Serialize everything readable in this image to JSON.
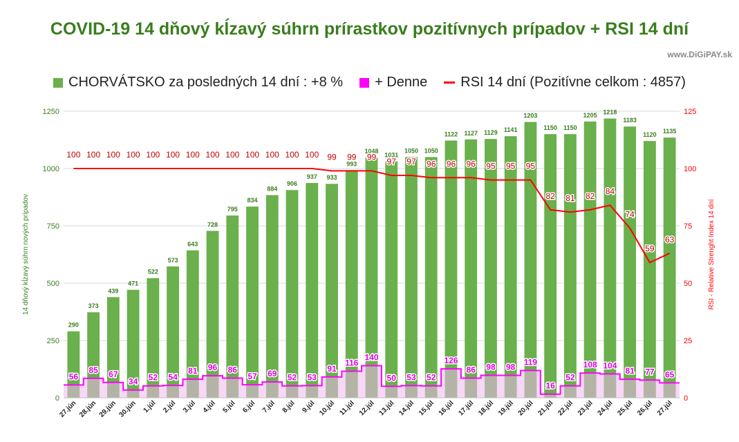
{
  "title": "COVID-19 14 dňový kĺzavý súhrn prírastkov pozitívnych prípadov + RSI 14 dní",
  "source": "www.DiGiPAY.sk",
  "colors": {
    "bar": "#6ab04c",
    "daily": "#ff00ff",
    "dailyFill": "#f0b8f0",
    "rsi": "#ff0000",
    "title": "#3a7d1e"
  },
  "chart_data": {
    "type": "bar",
    "categories": [
      "27.jún",
      "28.jún",
      "29.jún",
      "30.jún",
      "1.júl",
      "2.júl",
      "3.júl",
      "4.júl",
      "5.júl",
      "6.júl",
      "7.júl",
      "8.júl",
      "9.júl",
      "10.júl",
      "11.júl",
      "12.júl",
      "13.júl",
      "14.júl",
      "15.júl",
      "16.júl",
      "17.júl",
      "18.júl",
      "19.júl",
      "20.júl",
      "21.júl",
      "22.júl",
      "23.júl",
      "24.júl",
      "25.júl",
      "26.júl",
      "27.júl"
    ],
    "series": [
      {
        "name": "CHORVÁTSKO za posledných 14 dní : +8 %",
        "type": "bar",
        "axis": "left",
        "values": [
          290,
          373,
          439,
          471,
          522,
          573,
          643,
          728,
          795,
          834,
          884,
          906,
          937,
          933,
          993,
          1048,
          1031,
          1050,
          1050,
          1122,
          1127,
          1129,
          1141,
          1203,
          1150,
          1150,
          1205,
          1218,
          1183,
          1120,
          1135
        ]
      },
      {
        "name": "+ Denne",
        "type": "step-area",
        "axis": "left",
        "values": [
          56,
          85,
          67,
          34,
          52,
          54,
          81,
          96,
          86,
          57,
          69,
          52,
          53,
          91,
          116,
          140,
          50,
          53,
          52,
          126,
          86,
          98,
          98,
          119,
          16,
          52,
          108,
          104,
          81,
          77,
          65
        ]
      },
      {
        "name": "RSI 14 dní (Pozitívne celkom : 4857)",
        "type": "line",
        "axis": "right",
        "values": [
          100,
          100,
          100,
          100,
          100,
          100,
          100,
          100,
          100,
          100,
          100,
          100,
          100,
          99,
          99,
          99,
          97,
          97,
          96,
          96,
          96,
          95,
          95,
          95,
          82,
          81,
          82,
          84,
          74,
          59,
          63
        ]
      }
    ],
    "ylabel": "14 dňový kĺzavý súhrn nových prípadov",
    "ylim": [
      0,
      1250
    ],
    "yticks": [
      "0",
      "250",
      "500",
      "750",
      "1000",
      "1250"
    ],
    "y2label": "RSI - Relative Strenght Index 14 dní",
    "y2lim": [
      0,
      125
    ],
    "y2ticks": [
      "0",
      "25",
      "50",
      "75",
      "100",
      "125"
    ],
    "grid": true,
    "legend": "top-center"
  }
}
